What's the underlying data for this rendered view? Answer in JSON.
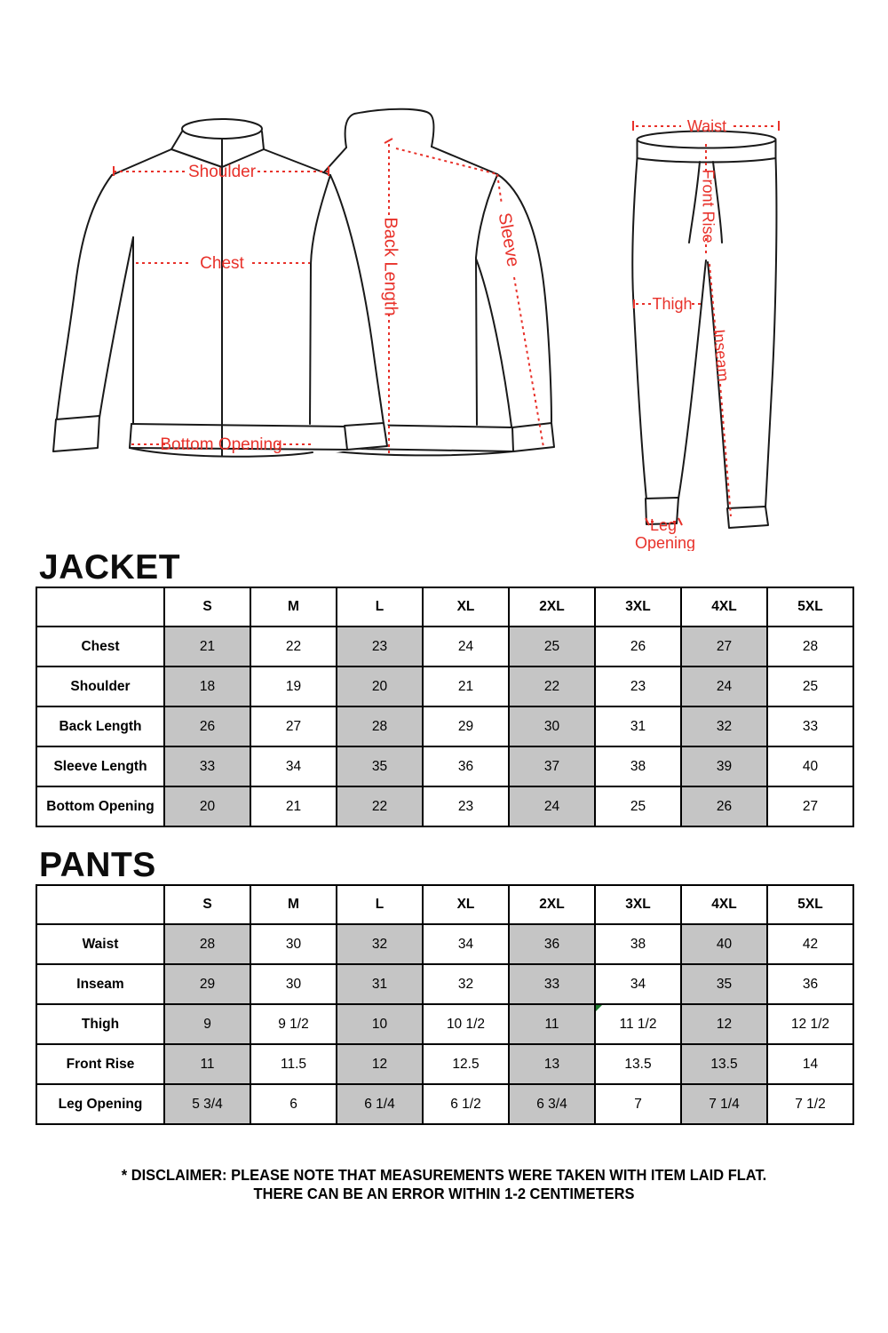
{
  "diagram": {
    "jacket_front": {
      "shoulder": "Shoulder",
      "chest": "Chest",
      "bottom_opening": "Bottom Opening"
    },
    "jacket_back": {
      "back_length": "Back Length",
      "sleeve": "Sleeve"
    },
    "pants_figure": {
      "waist": "Waist",
      "front_rise": "Front Rise",
      "thigh": "Thigh",
      "inseam": "Inseam",
      "leg": "Leg",
      "opening": "Opening"
    }
  },
  "jacket": {
    "title": "JACKET",
    "sizes": [
      "S",
      "M",
      "L",
      "XL",
      "2XL",
      "3XL",
      "4XL",
      "5XL"
    ],
    "rows": [
      {
        "label": "Chest",
        "values": [
          "21",
          "22",
          "23",
          "24",
          "25",
          "26",
          "27",
          "28"
        ]
      },
      {
        "label": "Shoulder",
        "values": [
          "18",
          "19",
          "20",
          "21",
          "22",
          "23",
          "24",
          "25"
        ]
      },
      {
        "label": "Back Length",
        "values": [
          "26",
          "27",
          "28",
          "29",
          "30",
          "31",
          "32",
          "33"
        ]
      },
      {
        "label": "Sleeve Length",
        "values": [
          "33",
          "34",
          "35",
          "36",
          "37",
          "38",
          "39",
          "40"
        ]
      },
      {
        "label": "Bottom Opening",
        "values": [
          "20",
          "21",
          "22",
          "23",
          "24",
          "25",
          "26",
          "27"
        ]
      }
    ]
  },
  "pants": {
    "title": "PANTS",
    "sizes": [
      "S",
      "M",
      "L",
      "XL",
      "2XL",
      "3XL",
      "4XL",
      "5XL"
    ],
    "rows": [
      {
        "label": "Waist",
        "values": [
          "28",
          "30",
          "32",
          "34",
          "36",
          "38",
          "40",
          "42"
        ]
      },
      {
        "label": "Inseam",
        "values": [
          "29",
          "30",
          "31",
          "32",
          "33",
          "34",
          "35",
          "36"
        ]
      },
      {
        "label": "Thigh",
        "values": [
          "9",
          "9 1/2",
          "10",
          "10 1/2",
          "11",
          "11 1/2",
          "12",
          "12 1/2"
        ]
      },
      {
        "label": "Front Rise",
        "values": [
          "11",
          "11.5",
          "12",
          "12.5",
          "13",
          "13.5",
          "13.5",
          "14"
        ]
      },
      {
        "label": "Leg Opening",
        "values": [
          "5 3/4",
          "6",
          "6 1/4",
          "6 1/2",
          "6 3/4",
          "7",
          "7 1/4",
          "7 1/2"
        ]
      }
    ],
    "comment_marker_cell": {
      "row": 2,
      "col": 5
    }
  },
  "disclaimer": {
    "line1": "* DISCLAIMER: PLEASE NOTE THAT MEASUREMENTS WERE TAKEN WITH ITEM LAID FLAT.",
    "line2": "THERE CAN BE AN ERROR WITHIN 1-2 CENTIMETERS"
  },
  "colors": {
    "annotation_red": "#e8312a",
    "shaded_cell_gray": "#c5c5c5",
    "comment_marker_green": "#1d7a2e",
    "line_black": "#191919"
  }
}
